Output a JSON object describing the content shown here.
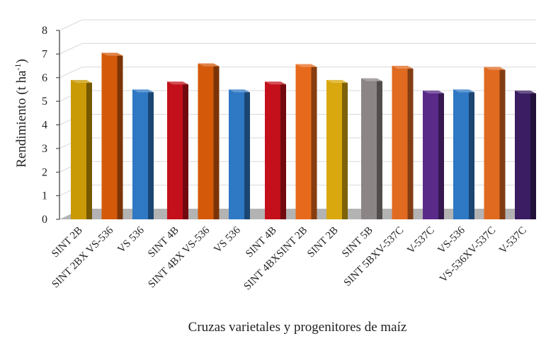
{
  "chart_data": {
    "type": "bar",
    "style": "3d-bar",
    "title": "",
    "xlabel": "Cruzas varietales y progenitores de maíz",
    "ylabel": "Rendimiento (t ha",
    "ylabel_sup": "-1",
    "ylabel_end": ")",
    "ylim": [
      0,
      8
    ],
    "yticks": [
      0,
      1,
      2,
      3,
      4,
      5,
      6,
      7,
      8
    ],
    "grid": true,
    "legend": "none",
    "groups": [
      {
        "bars": [
          {
            "label": "SINT 2B",
            "value": 5.9,
            "color": "#c99a06"
          },
          {
            "label": "SINT 2BX VS-536",
            "value": 7.05,
            "color": "#d45a0a"
          },
          {
            "label": "VS 536",
            "value": 5.5,
            "color": "#2e78c4"
          }
        ]
      },
      {
        "bars": [
          {
            "label": "SINT 4B",
            "value": 5.83,
            "color": "#c4101a"
          },
          {
            "label": "SINT 4BX VS-536",
            "value": 6.6,
            "color": "#d45a0a"
          },
          {
            "label": "VS 536",
            "value": 5.5,
            "color": "#2e78c4"
          }
        ]
      },
      {
        "bars": [
          {
            "label": "SINT 4B",
            "value": 5.83,
            "color": "#c4101a"
          },
          {
            "label": "SINT 4BXSINT 2B",
            "value": 6.57,
            "color": "#e76a1c"
          },
          {
            "label": "SINT 2B",
            "value": 5.9,
            "color": "#d9a80e"
          }
        ]
      },
      {
        "bars": [
          {
            "label": "SINT 5B",
            "value": 5.97,
            "color": "#8c8585"
          },
          {
            "label": "SINT 5BXV-537C",
            "value": 6.5,
            "color": "#e06a20"
          },
          {
            "label": "V-537C",
            "value": 5.45,
            "color": "#5a2a88"
          }
        ]
      },
      {
        "bars": [
          {
            "label": "VS-536",
            "value": 5.5,
            "color": "#2e78c4"
          },
          {
            "label": "VS-536XV-537C",
            "value": 6.45,
            "color": "#e06a20"
          },
          {
            "label": "V-537C",
            "value": 5.45,
            "color": "#3a1d62"
          }
        ]
      }
    ]
  }
}
